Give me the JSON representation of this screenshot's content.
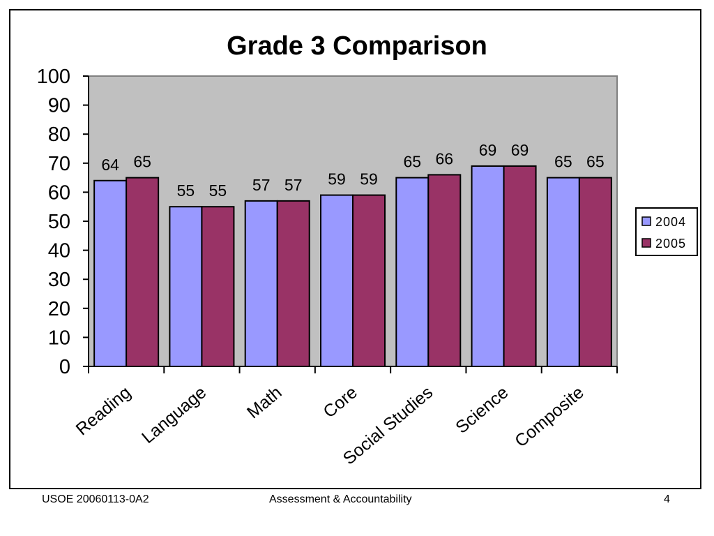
{
  "chart_data": {
    "type": "bar",
    "title": "Grade 3 Comparison",
    "categories": [
      "Reading",
      "Language",
      "Math",
      "Core",
      "Social Studies",
      "Science",
      "Composite"
    ],
    "series": [
      {
        "name": "2004",
        "values": [
          64,
          55,
          57,
          59,
          65,
          69,
          65
        ],
        "color": "#9999ff"
      },
      {
        "name": "2005",
        "values": [
          65,
          55,
          57,
          59,
          66,
          69,
          65
        ],
        "color": "#993366"
      }
    ],
    "ylim": [
      0,
      100
    ],
    "yticks": [
      0,
      10,
      20,
      30,
      40,
      50,
      60,
      70,
      80,
      90,
      100
    ],
    "xlabel": "",
    "ylabel": "",
    "plot_background": "#c0c0c0",
    "grid": false,
    "legend_position": "right",
    "data_labels": true
  },
  "footer": {
    "left": "USOE 20060113-0A2",
    "center": "Assessment & Accountability",
    "right": "4"
  }
}
